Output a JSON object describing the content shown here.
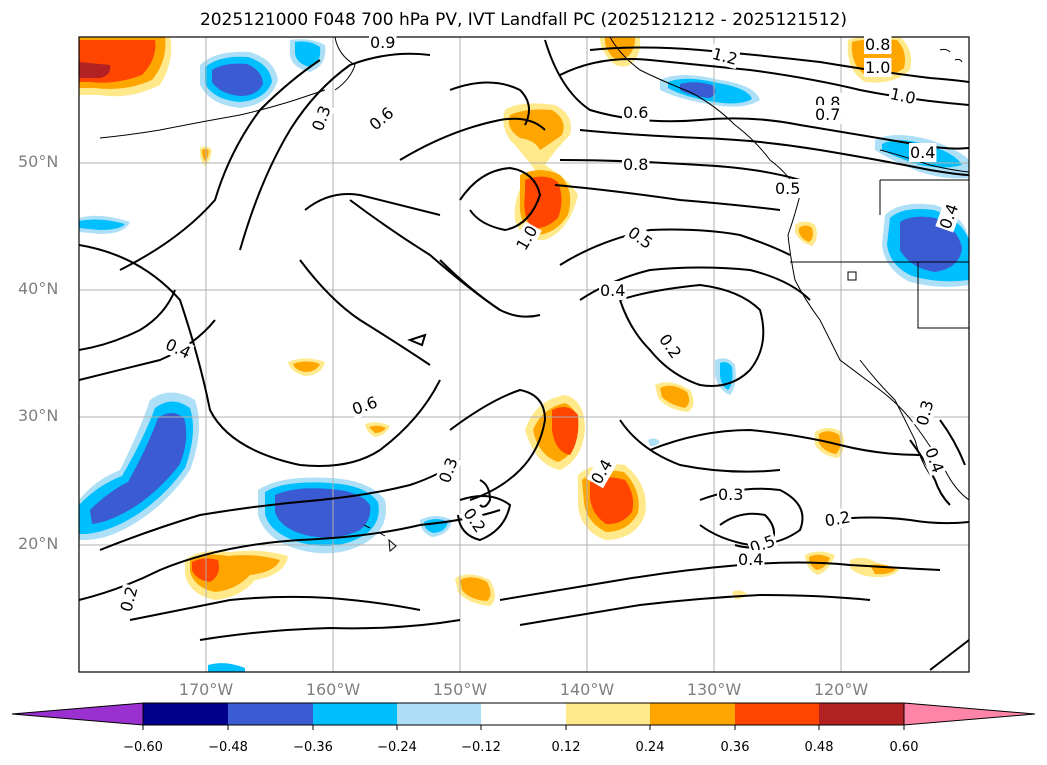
{
  "title": "2025121000 F048 700 hPa PV, IVT Landfall PC (2025121212 - 2025121512)",
  "lat_labels": [
    "50°N",
    "40°N",
    "30°N",
    "20°N"
  ],
  "lon_labels": [
    "170°W",
    "160°W",
    "150°W",
    "140°W",
    "130°W",
    "120°W"
  ],
  "colorbar": {
    "tick_labels": [
      "−0.60",
      "−0.48",
      "−0.36",
      "−0.24",
      "−0.12",
      "0.12",
      "0.24",
      "0.36",
      "0.48",
      "0.60"
    ],
    "colors": [
      "#9b30d0",
      "#00008b",
      "#3a5bd1",
      "#00bfff",
      "#ade0f7",
      "#ffffff",
      "#ffe98a",
      "#ffa500",
      "#ff4500",
      "#b22222",
      "#ff85a8"
    ]
  },
  "contour_labels": [
    "0.9",
    "0.3",
    "0.6",
    "1.2",
    "0.8",
    "1.0",
    "0.6",
    "0.8",
    "0.7",
    "1.0",
    "0.4",
    "0.8",
    "0.5",
    "0.4",
    "1.0",
    "0.5",
    "0.4",
    "0.2",
    "0.4",
    "0.6",
    "0.3",
    "0.2",
    "0.4",
    "0.3",
    "0.5",
    "0.4",
    "0.2",
    "0.2",
    "0.3",
    "0.4"
  ]
}
